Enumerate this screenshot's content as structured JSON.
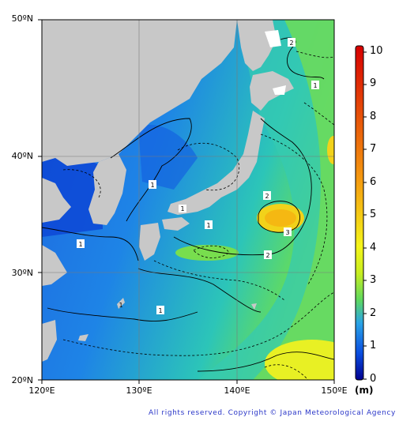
{
  "map": {
    "latitude_labels": [
      "50ºN",
      "40ºN",
      "30ºN",
      "20ºN"
    ],
    "longitude_labels": [
      "120ºE",
      "130ºE",
      "140ºE",
      "150ºE"
    ],
    "contour_labels": [
      "1",
      "1",
      "1",
      "1",
      "1",
      "1",
      "2",
      "2",
      "2",
      "3",
      "1"
    ],
    "land_color": "#c8c8c8",
    "grid_color": "#7a7a7a"
  },
  "colorbar": {
    "ticks": [
      "10",
      "9",
      "8",
      "7",
      "6",
      "5",
      "4",
      "3",
      "2",
      "1",
      "0"
    ],
    "unit": "(m)",
    "colors": [
      "#00008f",
      "#0a4de0",
      "#2aa3e6",
      "#5ed85e",
      "#f5f51a",
      "#f59a10",
      "#d70000"
    ]
  },
  "footer": {
    "copyright": "All rights reserved. Copyright © Japan Meteorological Agency"
  }
}
